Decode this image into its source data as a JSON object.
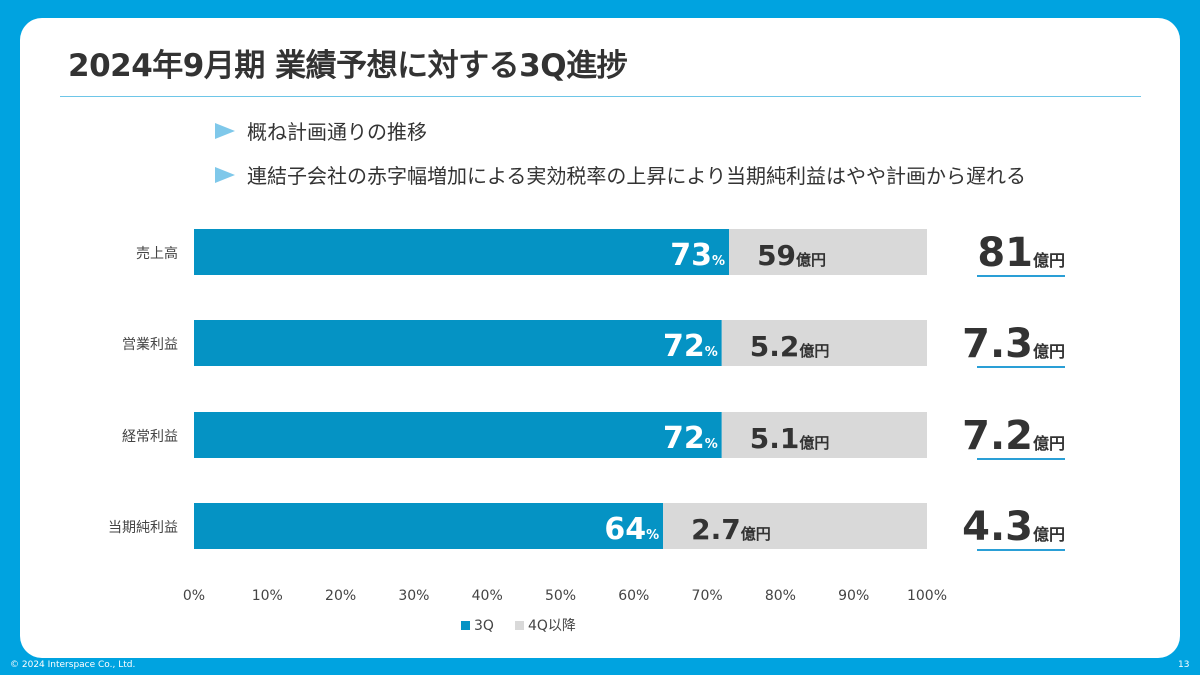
{
  "slide": {
    "title": "2024年9月期 業績予想に対する3Q進捗",
    "bullets": [
      "概ね計画通りの推移",
      "連結子会社の赤字幅増加による実効税率の上昇により当期純利益はやや計画から遅れる"
    ],
    "footer": "© 2024 Interspace Co., Ltd.",
    "page_number": "13"
  },
  "chart_data": {
    "type": "bar",
    "orientation": "horizontal",
    "stacked": true,
    "categories": [
      "売上高",
      "営業利益",
      "経常利益",
      "当期純利益"
    ],
    "series": [
      {
        "name": "3Q",
        "values": [
          73,
          72,
          72,
          64
        ],
        "color": "#0593c4"
      },
      {
        "name": "4Q以降",
        "values": [
          27,
          28,
          28,
          36
        ],
        "color": "#d9d9d9"
      }
    ],
    "bar_labels_3q": [
      {
        "num": "73",
        "unit": "%"
      },
      {
        "num": "72",
        "unit": "%"
      },
      {
        "num": "72",
        "unit": "%"
      },
      {
        "num": "64",
        "unit": "%"
      }
    ],
    "bar_labels_remaining": [
      {
        "num": "59",
        "unit": "億円"
      },
      {
        "num": "5.2",
        "unit": "億円"
      },
      {
        "num": "5.1",
        "unit": "億円"
      },
      {
        "num": "2.7",
        "unit": "億円"
      }
    ],
    "full_year_forecast": [
      {
        "num": "81",
        "unit": "億円"
      },
      {
        "num": "7.3",
        "unit": "億円"
      },
      {
        "num": "7.2",
        "unit": "億円"
      },
      {
        "num": "4.3",
        "unit": "億円"
      }
    ],
    "xlim": [
      0,
      100
    ],
    "xticks": [
      "0%",
      "10%",
      "20%",
      "30%",
      "40%",
      "50%",
      "60%",
      "70%",
      "80%",
      "90%",
      "100%"
    ],
    "legend_position": "bottom",
    "grid": false
  }
}
